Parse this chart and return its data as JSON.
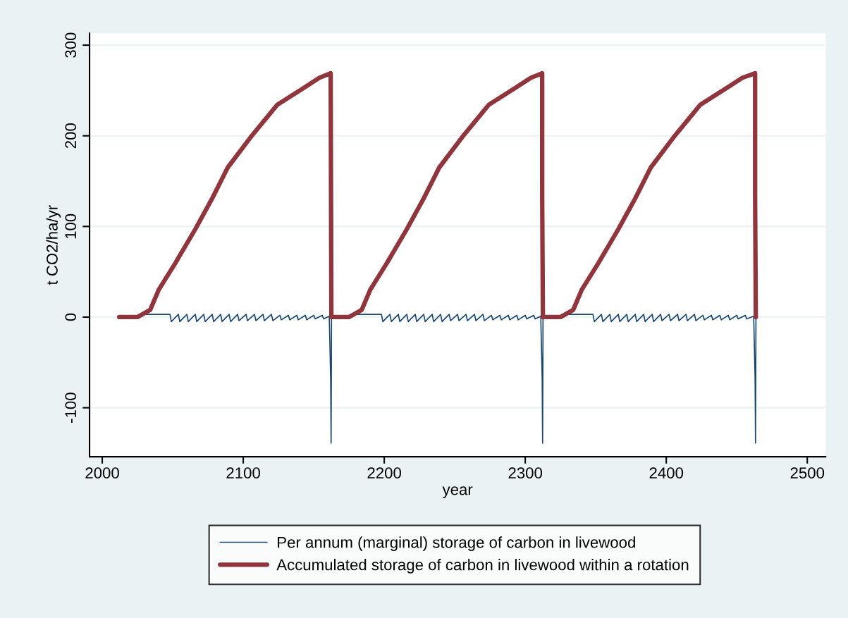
{
  "chart_data": {
    "type": "line",
    "xlabel": "year",
    "ylabel": "t CO2/ha/yr",
    "xlim": [
      1991,
      2513
    ],
    "xticks": [
      2000,
      2100,
      2200,
      2300,
      2400,
      2500
    ],
    "ylim": [
      -154,
      313
    ],
    "yticks": [
      -100,
      0,
      100,
      200,
      300
    ],
    "grid": "y",
    "legend": "bottom",
    "line_style": "solid",
    "marker": "none",
    "series": [
      {
        "name": "Per annum (marginal) storage of carbon in livewood",
        "color": "#1a476f",
        "x": [
          2012,
          2025,
          2026,
          2048,
          2049,
          2054,
          2055,
          2060,
          2061,
          2066,
          2067,
          2072,
          2073,
          2078,
          2079,
          2084,
          2085,
          2090,
          2091,
          2096,
          2097,
          2102,
          2103,
          2108,
          2109,
          2114,
          2115,
          2120,
          2121,
          2126,
          2127,
          2132,
          2133,
          2138,
          2139,
          2144,
          2145,
          2150,
          2151,
          2156,
          2157,
          2161,
          2162,
          2162.3,
          2162.6,
          2175,
          2176,
          2198,
          2199,
          2204,
          2205,
          2210,
          2211,
          2216,
          2217,
          2222,
          2223,
          2228,
          2229,
          2234,
          2235,
          2240,
          2241,
          2246,
          2247,
          2252,
          2253,
          2258,
          2259,
          2264,
          2265,
          2270,
          2271,
          2276,
          2277,
          2282,
          2283,
          2288,
          2289,
          2294,
          2295,
          2300,
          2301,
          2306,
          2307,
          2311,
          2312,
          2312.3,
          2312.6,
          2325,
          2326,
          2348,
          2349,
          2354,
          2355,
          2360,
          2361,
          2366,
          2367,
          2372,
          2373,
          2378,
          2379,
          2384,
          2385,
          2390,
          2391,
          2396,
          2397,
          2402,
          2403,
          2408,
          2409,
          2414,
          2415,
          2420,
          2421,
          2426,
          2427,
          2432,
          2433,
          2438,
          2439,
          2444,
          2445,
          2450,
          2451,
          2456,
          2457,
          2462,
          2463,
          2463.3,
          2463.6
        ],
        "values": [
          0,
          1,
          3,
          3,
          -5,
          3,
          -5,
          3,
          -5,
          3,
          -5,
          3,
          -5,
          3,
          -5,
          3,
          -5,
          3,
          -5,
          3,
          -4,
          3,
          -4,
          3,
          -4,
          3,
          -4,
          3,
          -4,
          2,
          -3,
          2,
          -3,
          2,
          -3,
          2,
          -3,
          2,
          -2,
          2,
          -2,
          1,
          -68,
          -139,
          0,
          1,
          3,
          3,
          -5,
          3,
          -5,
          3,
          -5,
          3,
          -5,
          3,
          -5,
          3,
          -5,
          3,
          -5,
          3,
          -5,
          3,
          -4,
          3,
          -4,
          3,
          -4,
          3,
          -4,
          3,
          -4,
          2,
          -3,
          2,
          -3,
          2,
          -3,
          2,
          -3,
          2,
          -2,
          2,
          -2,
          1,
          -68,
          -139,
          0,
          1,
          3,
          3,
          -5,
          3,
          -5,
          3,
          -5,
          3,
          -5,
          3,
          -5,
          3,
          -5,
          3,
          -5,
          3,
          -5,
          3,
          -4,
          3,
          -4,
          3,
          -4,
          3,
          -4,
          3,
          -4,
          2,
          -3,
          2,
          -3,
          2,
          -3,
          2,
          -3,
          2,
          -2,
          2,
          -2,
          1,
          -68,
          -139,
          0
        ]
      },
      {
        "name": "Accumulated storage of carbon in livewood within a rotation",
        "color": "#90353b",
        "x": [
          2012,
          2025,
          2034,
          2040,
          2052,
          2066,
          2078,
          2089,
          2105,
          2124,
          2144,
          2154,
          2162,
          2162.5,
          2175,
          2184,
          2190,
          2202,
          2216,
          2228,
          2239,
          2255,
          2274,
          2294,
          2304,
          2312,
          2312,
          2312.5,
          2325,
          2334,
          2340,
          2352,
          2366,
          2378,
          2389,
          2405,
          2424,
          2444,
          2454,
          2463,
          2463,
          2463.5
        ],
        "values": [
          0,
          0,
          8,
          30,
          60,
          97,
          131,
          165,
          198,
          234,
          254,
          264,
          269,
          0,
          0,
          8,
          30,
          60,
          97,
          131,
          165,
          198,
          234,
          254,
          264,
          269,
          134,
          0,
          0,
          8,
          30,
          60,
          97,
          131,
          165,
          198,
          234,
          254,
          264,
          269,
          134,
          0
        ]
      }
    ]
  }
}
